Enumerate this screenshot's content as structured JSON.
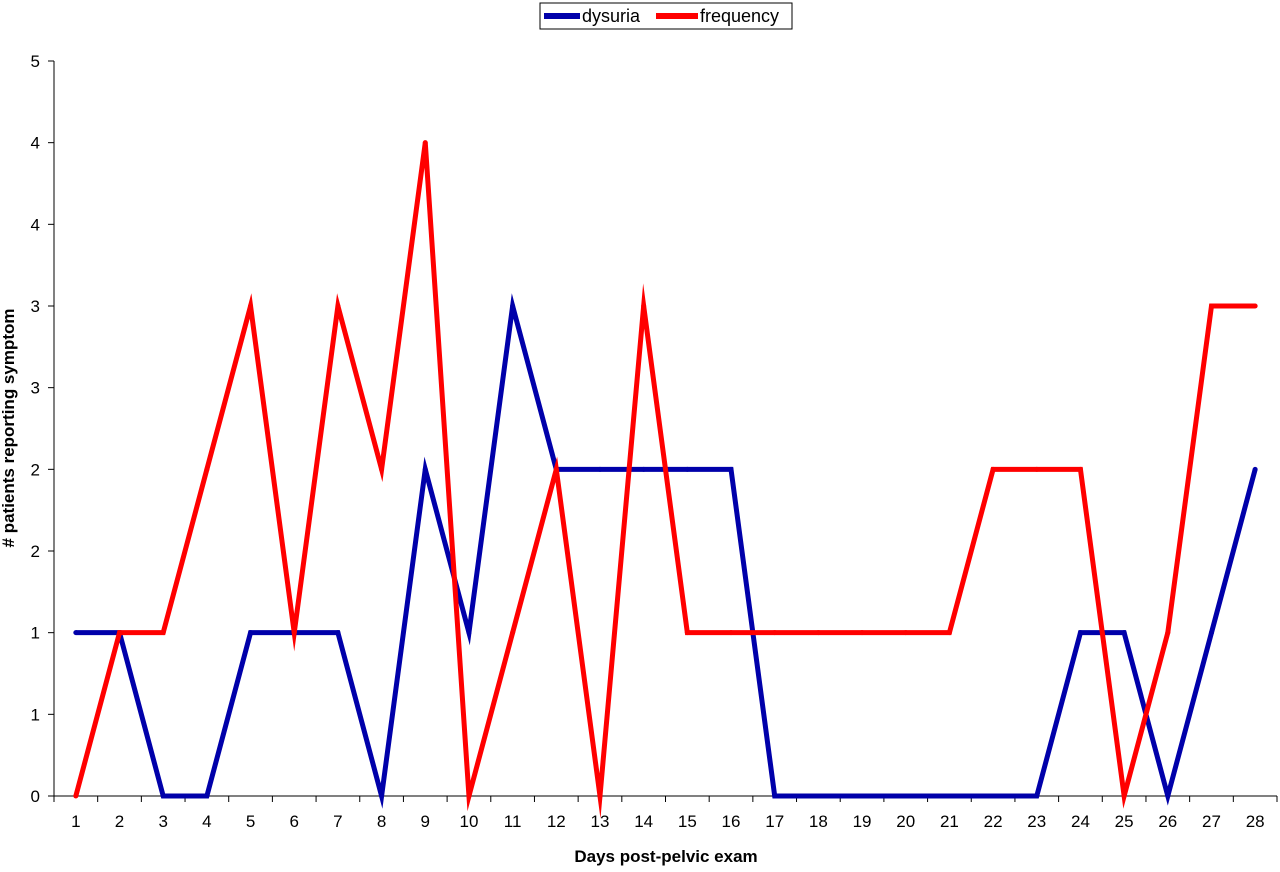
{
  "chart_data": {
    "type": "line",
    "title": "",
    "xlabel": "Days post-pelvic exam",
    "ylabel": "# patients reporting symptom",
    "categories": [
      "1",
      "2",
      "3",
      "4",
      "5",
      "6",
      "7",
      "8",
      "9",
      "10",
      "11",
      "12",
      "13",
      "14",
      "15",
      "16",
      "17",
      "18",
      "19",
      "20",
      "21",
      "22",
      "23",
      "24",
      "25",
      "26",
      "27",
      "28"
    ],
    "ylim": [
      0,
      4.5
    ],
    "y_ticks": [
      0,
      0.5,
      1,
      1.5,
      2,
      2.5,
      3,
      3.5,
      4,
      4.5
    ],
    "y_tick_labels": [
      "0",
      "1",
      "1",
      "2",
      "2",
      "3",
      "3",
      "4",
      "4",
      "5"
    ],
    "grid": false,
    "legend_position": "top-center",
    "series": [
      {
        "name": "dysuria",
        "color": "#0000AA",
        "values": [
          1,
          1,
          0,
          0,
          1,
          1,
          1,
          0,
          2,
          1,
          3,
          2,
          2,
          2,
          2,
          2,
          0,
          0,
          0,
          0,
          0,
          0,
          0,
          1,
          1,
          0,
          1,
          2
        ]
      },
      {
        "name": "frequency",
        "color": "#FF0000",
        "values": [
          0,
          1,
          1,
          2,
          3,
          1,
          3,
          2,
          4,
          0,
          1,
          2,
          0,
          3,
          1,
          1,
          1,
          1,
          1,
          1,
          1,
          2,
          2,
          2,
          0,
          1,
          3,
          3
        ]
      }
    ]
  }
}
